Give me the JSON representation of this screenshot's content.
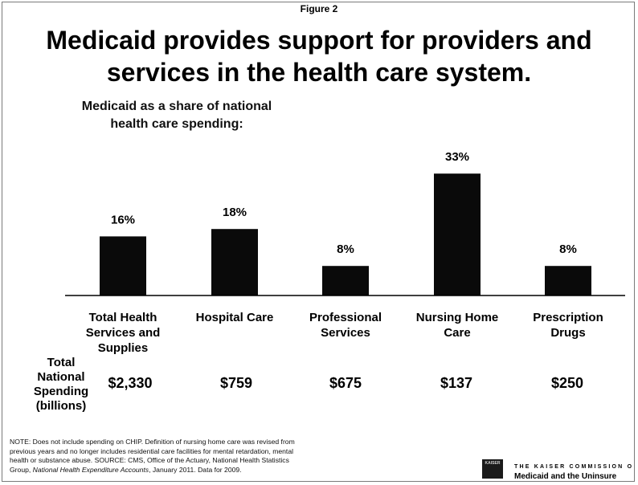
{
  "figure_label": "Figure 2",
  "title_line1": "Medicaid provides support for providers and",
  "title_line2": "services in the health care system.",
  "subtitle_line1": "Medicaid as a share of national",
  "subtitle_line2": "health care spending:",
  "chart_data": {
    "type": "bar",
    "categories": [
      [
        "Total Health",
        "Services and",
        "Supplies"
      ],
      [
        "Hospital Care"
      ],
      [
        "Professional",
        "Services"
      ],
      [
        "Nursing Home",
        "Care"
      ],
      [
        "Prescription",
        "Drugs"
      ]
    ],
    "values": [
      16,
      18,
      8,
      33,
      8
    ],
    "value_labels": [
      "16%",
      "18%",
      "8%",
      "33%",
      "8%"
    ],
    "ylim": [
      0,
      36
    ],
    "bar_color": "#0a0a0a",
    "grid": false,
    "legend": "none"
  },
  "spending": {
    "label_lines": [
      "Total",
      "National",
      "Spending",
      "(billions)"
    ],
    "values": [
      "$2,330",
      "$759",
      "$675",
      "$137",
      "$250"
    ]
  },
  "note": {
    "line1": "NOTE: Does not include spending on CHIP.  Definition of nursing home care was revised from",
    "line2": "previous years and no longer includes residential care facilities for mental retardation, mental",
    "line3": "health or substance abuse.   SOURCE: CMS, Office of the Actuary, National Health Statistics",
    "line4_pre": "Group, ",
    "line4_italic": "National Health Expenditure Accounts",
    "line4_post": ", January 2011.  Data for 2009."
  },
  "logo": {
    "mark_text": "KAISER",
    "line1": "THE KAISER COMMISSION O",
    "line2": "Medicaid and the Uninsure"
  }
}
